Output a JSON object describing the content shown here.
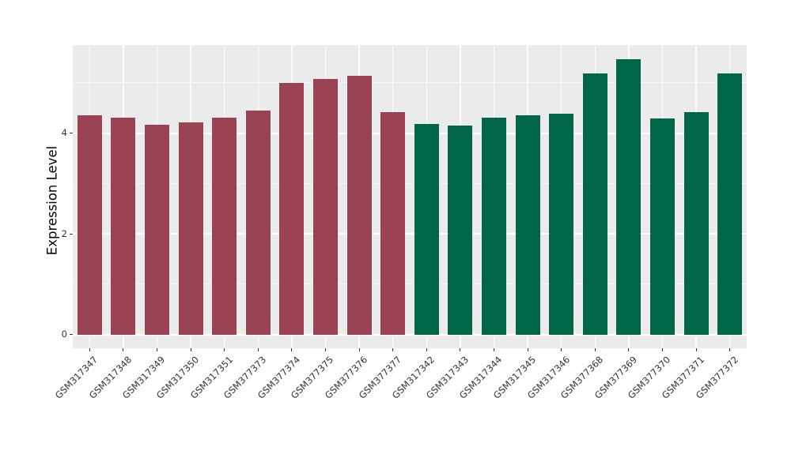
{
  "figure": {
    "background_color": "#ffffff"
  },
  "chart_data": {
    "type": "bar",
    "title": "",
    "xlabel": "",
    "ylabel": "Expression Level",
    "legend": "none",
    "grid": "on",
    "panel_background": "#EBEBEB",
    "grid_major_color": "#FFFFFF",
    "grid_minor_color": "#F7F7F7",
    "tick_color": "#333333",
    "tick_label_color": "#333333",
    "ylim": [
      -0.27,
      5.75
    ],
    "yticks": [
      0,
      2,
      4
    ],
    "yticks_minor": [
      1,
      3,
      5
    ],
    "categories": [
      "GSM317347",
      "GSM317348",
      "GSM317349",
      "GSM317350",
      "GSM317351",
      "GSM377373",
      "GSM377374",
      "GSM377375",
      "GSM377376",
      "GSM377377",
      "GSM317342",
      "GSM317343",
      "GSM317344",
      "GSM317345",
      "GSM317346",
      "GSM377368",
      "GSM377369",
      "GSM377370",
      "GSM377371",
      "GSM377372"
    ],
    "values": [
      4.36,
      4.31,
      4.16,
      4.22,
      4.3,
      4.45,
      4.99,
      5.07,
      5.14,
      4.42,
      4.19,
      4.15,
      4.3,
      4.35,
      4.39,
      5.18,
      5.47,
      4.29,
      4.42,
      5.18
    ],
    "bar_groups": [
      "group1",
      "group1",
      "group1",
      "group1",
      "group1",
      "group1",
      "group1",
      "group1",
      "group1",
      "group1",
      "group2",
      "group2",
      "group2",
      "group2",
      "group2",
      "group2",
      "group2",
      "group2",
      "group2",
      "group2"
    ],
    "group_colors": {
      "group1": "#9A4352",
      "group2": "#006649"
    }
  }
}
